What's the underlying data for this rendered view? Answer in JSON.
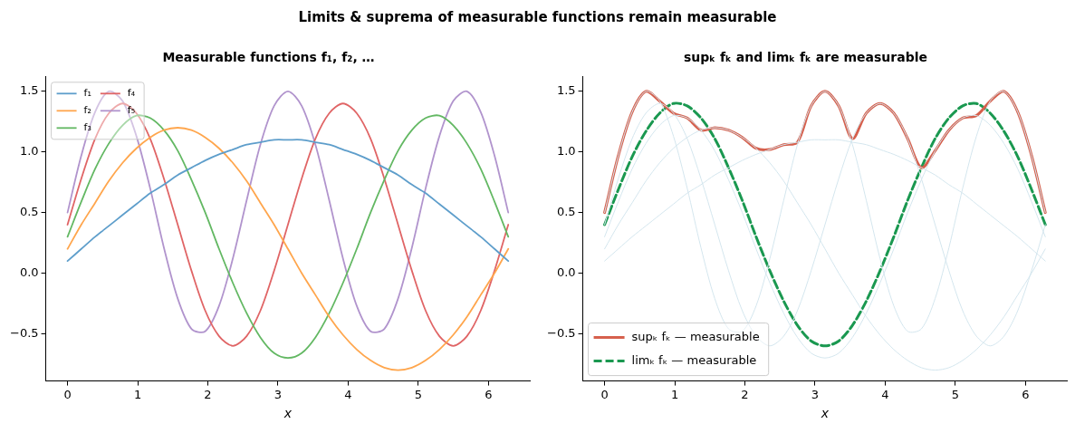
{
  "chart_data": [
    {
      "type": "other",
      "title": "Limits & suprema of measurable functions remain measurable"
    },
    {
      "type": "line",
      "title": "Measurable functions f₁, f₂, …",
      "xlabel": "x",
      "legend": "top left",
      "grid": false,
      "x": [
        0,
        0.196,
        0.393,
        0.589,
        0.785,
        0.982,
        1.178,
        1.374,
        1.571,
        1.767,
        1.963,
        2.16,
        2.356,
        2.553,
        2.749,
        2.945,
        3.142,
        3.338,
        3.534,
        3.731,
        3.927,
        4.123,
        4.32,
        4.516,
        4.712,
        4.909,
        5.105,
        5.301,
        5.498,
        5.694,
        5.89,
        6.087,
        6.283
      ],
      "xlim": [
        -0.31,
        6.59
      ],
      "xticks": [
        0,
        1,
        2,
        3,
        4,
        5,
        6
      ],
      "ylim": [
        -0.89,
        1.62
      ],
      "yticks": [
        {
          "value": -0.5,
          "label": "−0.5"
        },
        {
          "value": 0,
          "label": "0.0"
        },
        {
          "value": 0.5,
          "label": "0.5"
        },
        {
          "value": 1,
          "label": "1.0"
        },
        {
          "value": 1.5,
          "label": "1.5"
        }
      ],
      "series": [
        {
          "name": "f₁",
          "color": "#5e9ecb",
          "values": [
            0.1,
            0.2,
            0.3,
            0.39,
            0.48,
            0.57,
            0.66,
            0.73,
            0.81,
            0.87,
            0.93,
            0.98,
            1.02,
            1.06,
            1.08,
            1.1,
            1.1,
            1.1,
            1.08,
            1.06,
            1.02,
            0.98,
            0.93,
            0.87,
            0.81,
            0.73,
            0.66,
            0.57,
            0.48,
            0.39,
            0.3,
            0.2,
            0.1
          ]
        },
        {
          "name": "f₂",
          "color": "#ffa64d",
          "values": [
            0.2,
            0.4,
            0.58,
            0.76,
            0.91,
            1.03,
            1.12,
            1.18,
            1.2,
            1.18,
            1.12,
            1.03,
            0.91,
            0.76,
            0.58,
            0.4,
            0.2,
            0,
            -0.18,
            -0.36,
            -0.51,
            -0.63,
            -0.72,
            -0.78,
            -0.8,
            -0.78,
            -0.72,
            -0.63,
            -0.51,
            -0.36,
            -0.18,
            0,
            0.2
          ]
        },
        {
          "name": "f₃",
          "color": "#63b863",
          "values": [
            0.3,
            0.59,
            0.86,
            1.07,
            1.22,
            1.3,
            1.28,
            1.18,
            1.01,
            0.77,
            0.5,
            0.2,
            -0.08,
            -0.33,
            -0.53,
            -0.66,
            -0.7,
            -0.66,
            -0.53,
            -0.33,
            -0.08,
            0.2,
            0.5,
            0.77,
            1.01,
            1.18,
            1.28,
            1.3,
            1.22,
            1.07,
            0.86,
            0.59,
            0.3
          ]
        },
        {
          "name": "f₄",
          "color": "#e06566",
          "values": [
            0.4,
            0.78,
            1.11,
            1.32,
            1.4,
            1.32,
            1.11,
            0.78,
            0.4,
            0.02,
            -0.31,
            -0.52,
            -0.6,
            -0.52,
            -0.31,
            0.02,
            0.4,
            0.78,
            1.11,
            1.32,
            1.4,
            1.32,
            1.11,
            0.78,
            0.4,
            0.02,
            -0.31,
            -0.52,
            -0.6,
            -0.52,
            -0.31,
            0.02,
            0.4
          ]
        },
        {
          "name": "f₅",
          "color": "#b194cd",
          "values": [
            0.5,
            0.97,
            1.33,
            1.5,
            1.42,
            1.13,
            0.7,
            0.21,
            -0.21,
            -0.46,
            -0.48,
            -0.27,
            0.12,
            0.6,
            1.06,
            1.38,
            1.5,
            1.38,
            1.06,
            0.6,
            0.12,
            -0.27,
            -0.48,
            -0.46,
            -0.21,
            0.21,
            0.7,
            1.13,
            1.42,
            1.5,
            1.33,
            0.97,
            0.5
          ]
        }
      ]
    },
    {
      "type": "line",
      "title": "supₖ fₖ and limₖ fₖ are measurable",
      "xlabel": "x",
      "legend": "bottom left",
      "grid": false,
      "x": [
        0,
        0.196,
        0.393,
        0.589,
        0.785,
        0.982,
        1.178,
        1.374,
        1.571,
        1.767,
        1.963,
        2.16,
        2.356,
        2.553,
        2.749,
        2.945,
        3.142,
        3.338,
        3.534,
        3.731,
        3.927,
        4.123,
        4.32,
        4.516,
        4.712,
        4.909,
        5.105,
        5.301,
        5.498,
        5.694,
        5.89,
        6.087,
        6.283
      ],
      "xlim": [
        -0.31,
        6.59
      ],
      "xticks": [
        0,
        1,
        2,
        3,
        4,
        5,
        6
      ],
      "ylim": [
        -0.89,
        1.62
      ],
      "yticks": [
        {
          "value": -0.5,
          "label": "−0.5"
        },
        {
          "value": 0,
          "label": "0.0"
        },
        {
          "value": 0.5,
          "label": "0.5"
        },
        {
          "value": 1,
          "label": "1.0"
        },
        {
          "value": 1.5,
          "label": "1.5"
        }
      ],
      "series": [
        {
          "color": "#d4e6ee",
          "values": [
            0.1,
            0.2,
            0.3,
            0.39,
            0.48,
            0.57,
            0.66,
            0.73,
            0.81,
            0.87,
            0.93,
            0.98,
            1.02,
            1.06,
            1.08,
            1.1,
            1.1,
            1.1,
            1.08,
            1.06,
            1.02,
            0.98,
            0.93,
            0.87,
            0.81,
            0.73,
            0.66,
            0.57,
            0.48,
            0.39,
            0.3,
            0.2,
            0.1
          ]
        },
        {
          "color": "#d4e6ee",
          "values": [
            0.2,
            0.4,
            0.58,
            0.76,
            0.91,
            1.03,
            1.12,
            1.18,
            1.2,
            1.18,
            1.12,
            1.03,
            0.91,
            0.76,
            0.58,
            0.4,
            0.2,
            0,
            -0.18,
            -0.36,
            -0.51,
            -0.63,
            -0.72,
            -0.78,
            -0.8,
            -0.78,
            -0.72,
            -0.63,
            -0.51,
            -0.36,
            -0.18,
            0,
            0.2
          ]
        },
        {
          "color": "#d4e6ee",
          "values": [
            0.3,
            0.59,
            0.86,
            1.07,
            1.22,
            1.3,
            1.28,
            1.18,
            1.01,
            0.77,
            0.5,
            0.2,
            -0.08,
            -0.33,
            -0.53,
            -0.66,
            -0.7,
            -0.66,
            -0.53,
            -0.33,
            -0.08,
            0.2,
            0.5,
            0.77,
            1.01,
            1.18,
            1.28,
            1.3,
            1.22,
            1.07,
            0.86,
            0.59,
            0.3
          ]
        },
        {
          "color": "#d4e6ee",
          "values": [
            0.4,
            0.78,
            1.11,
            1.32,
            1.4,
            1.32,
            1.11,
            0.78,
            0.4,
            0.02,
            -0.31,
            -0.52,
            -0.6,
            -0.52,
            -0.31,
            0.02,
            0.4,
            0.78,
            1.11,
            1.32,
            1.4,
            1.32,
            1.11,
            0.78,
            0.4,
            0.02,
            -0.31,
            -0.52,
            -0.6,
            -0.52,
            -0.31,
            0.02,
            0.4
          ]
        },
        {
          "color": "#d4e6ee",
          "values": [
            0.5,
            0.97,
            1.33,
            1.5,
            1.42,
            1.13,
            0.7,
            0.21,
            -0.21,
            -0.46,
            -0.48,
            -0.27,
            0.12,
            0.6,
            1.06,
            1.38,
            1.5,
            1.38,
            1.06,
            0.6,
            0.12,
            -0.27,
            -0.48,
            -0.46,
            -0.21,
            0.21,
            0.7,
            1.13,
            1.42,
            1.5,
            1.33,
            0.97,
            0.5
          ]
        },
        {
          "name": "supₖ fₖ — measurable",
          "color": "#d6604d",
          "line_style": "solid",
          "values": [
            0.5,
            0.97,
            1.33,
            1.5,
            1.42,
            1.32,
            1.28,
            1.18,
            1.2,
            1.18,
            1.12,
            1.03,
            1.02,
            1.06,
            1.08,
            1.38,
            1.5,
            1.38,
            1.11,
            1.32,
            1.4,
            1.32,
            1.11,
            0.87,
            1.01,
            1.18,
            1.28,
            1.3,
            1.42,
            1.5,
            1.33,
            0.97,
            0.5
          ]
        },
        {
          "name": "limₖ fₖ — measurable",
          "color": "#1a9850",
          "line_style": "dashed",
          "values": [
            0.4,
            0.69,
            0.96,
            1.17,
            1.32,
            1.4,
            1.38,
            1.28,
            1.11,
            0.87,
            0.6,
            0.3,
            0.02,
            -0.23,
            -0.43,
            -0.56,
            -0.6,
            -0.56,
            -0.43,
            -0.23,
            0.02,
            0.3,
            0.6,
            0.87,
            1.11,
            1.28,
            1.38,
            1.4,
            1.32,
            1.17,
            0.96,
            0.69,
            0.4
          ]
        }
      ]
    }
  ]
}
